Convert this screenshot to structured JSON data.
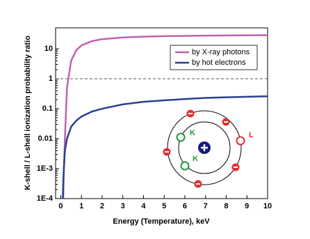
{
  "chart_data": {
    "type": "line",
    "log_y": true,
    "x_label": "Energy (Temperature), keV",
    "y_label": "K-shell / L-shell ionization probability ratio",
    "x": [
      0.1,
      0.12,
      0.15,
      0.2,
      0.3,
      0.5,
      0.75,
      1,
      1.5,
      2,
      3,
      4,
      5,
      6,
      7,
      8,
      10
    ],
    "series": [
      {
        "name": "by X-ray photons",
        "color": "#c060b0",
        "values": [
          null,
          0.0001,
          0.001,
          0.01,
          0.5,
          4,
          9,
          13,
          18,
          21,
          24,
          25.5,
          26.5,
          27,
          27.5,
          28,
          28.5
        ]
      },
      {
        "name": "by hot electrons",
        "color": "#2b3f8f",
        "values": [
          0.0001,
          0.0004,
          0.001,
          0.004,
          0.01,
          0.025,
          0.04,
          0.055,
          0.08,
          0.1,
          0.14,
          0.17,
          0.19,
          0.21,
          0.23,
          0.24,
          0.26
        ]
      }
    ],
    "hline": 1,
    "xlim": [
      -0.25,
      10
    ],
    "xticks": [
      0,
      1,
      2,
      3,
      4,
      5,
      6,
      7,
      8,
      9,
      10
    ],
    "ylim": [
      0.0001,
      50
    ],
    "yticks": [
      {
        "value": 0.0001,
        "label": "1E-4"
      },
      {
        "value": 0.001,
        "label": "1E-3"
      },
      0.01,
      0.1,
      1,
      10
    ],
    "legend": "top-right",
    "inset_labels": [
      "K",
      "K",
      "L"
    ]
  }
}
